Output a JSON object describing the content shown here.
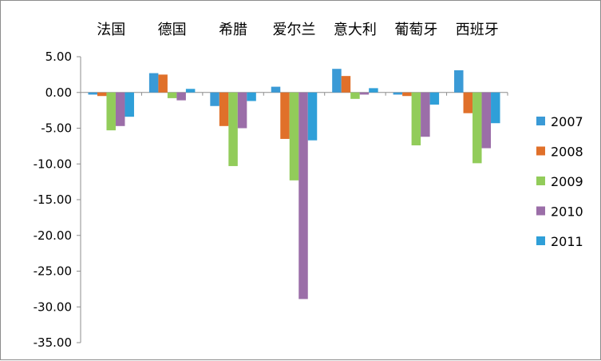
{
  "chart_data": {
    "type": "bar",
    "title": "",
    "xlabel": "",
    "ylabel": "",
    "categories": [
      "法国",
      "德国",
      "希腊",
      "爱尔兰",
      "意大利",
      "葡萄牙",
      "西班牙"
    ],
    "series": [
      {
        "name": "2007",
        "values": [
          -0.3,
          2.7,
          -1.9,
          0.8,
          3.3,
          -0.3,
          3.1
        ],
        "color": "#3a9ad6"
      },
      {
        "name": "2008",
        "values": [
          -0.5,
          2.5,
          -4.7,
          -6.5,
          2.3,
          -0.5,
          -2.9
        ],
        "color": "#e0702a"
      },
      {
        "name": "2009",
        "values": [
          -5.3,
          -0.8,
          -10.3,
          -12.3,
          -0.9,
          -7.4,
          -9.9
        ],
        "color": "#92cc5a"
      },
      {
        "name": "2010",
        "values": [
          -4.7,
          -1.1,
          -5.0,
          -28.9,
          -0.3,
          -6.2,
          -7.8
        ],
        "color": "#9b6ea8"
      },
      {
        "name": "2011",
        "values": [
          -3.4,
          0.5,
          -1.2,
          -6.7,
          0.6,
          -1.7,
          -4.3
        ],
        "color": "#2f9fd8"
      }
    ],
    "ylim": [
      -35,
      5
    ],
    "yticks": [
      "5.00",
      "0.00",
      "-5.00",
      "-10.00",
      "-15.00",
      "-20.00",
      "-25.00",
      "-30.00",
      "-35.00"
    ],
    "ytick_values": [
      5,
      0,
      -5,
      -10,
      -15,
      -20,
      -25,
      -30,
      -35
    ],
    "category_labels_position": "top",
    "grid": false,
    "legend": "right"
  }
}
